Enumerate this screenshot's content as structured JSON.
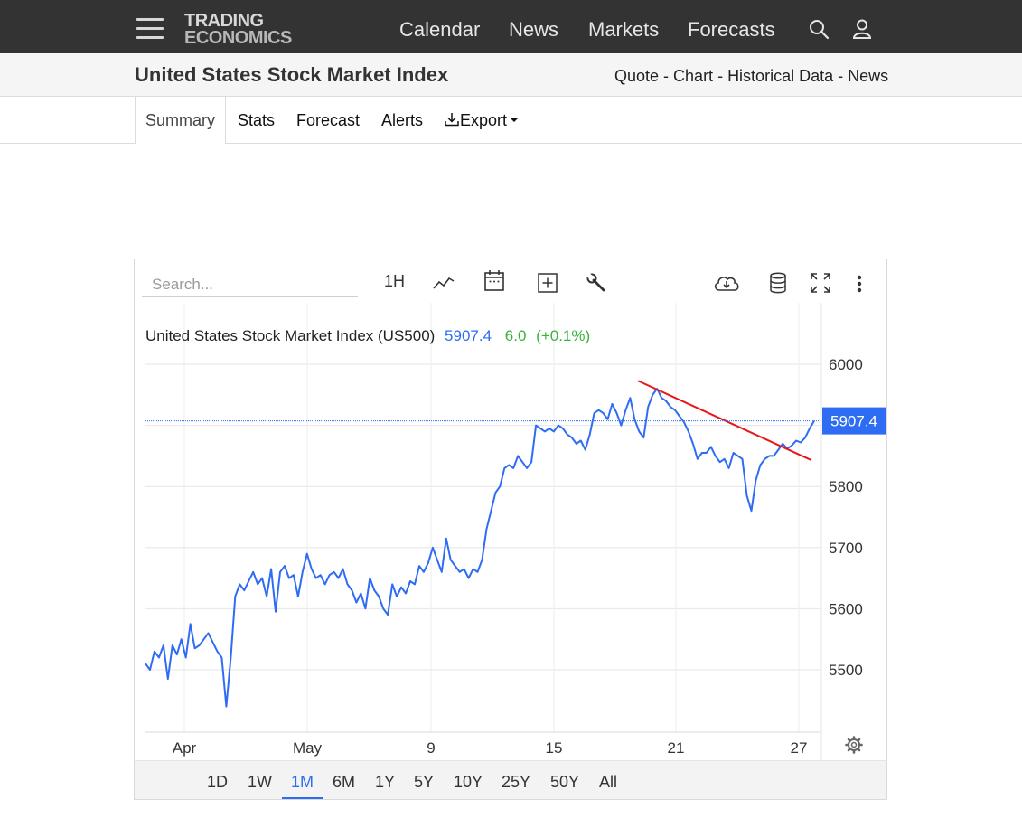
{
  "nav": {
    "logo_line1": "TRADING",
    "logo_line2": "ECONOMICS",
    "links": [
      "Calendar",
      "News",
      "Markets",
      "Forecasts"
    ]
  },
  "header": {
    "title": "United States Stock Market Index",
    "crumbs": [
      "Quote",
      "Chart",
      "Historical Data",
      "News"
    ]
  },
  "tabs": {
    "summary": "Summary",
    "stats": "Stats",
    "forecast": "Forecast",
    "alerts": "Alerts",
    "export": "Export"
  },
  "toolbar": {
    "search_placeholder": "Search...",
    "interval": "1H"
  },
  "ranges": [
    "1D",
    "1W",
    "1M",
    "6M",
    "1Y",
    "5Y",
    "10Y",
    "25Y",
    "50Y",
    "All"
  ],
  "active_range": "1M",
  "colors": {
    "series": "#2f6cf4",
    "trendline": "#e8171b",
    "positive": "#3bb33b",
    "price_label_bg": "#2f6cf4"
  },
  "chart_data": {
    "type": "line",
    "title": "United States Stock Market Index (US500)",
    "last_value": "5907.4",
    "change": "6.0",
    "change_pct": "(+0.1%)",
    "price_label": "5907.4",
    "x_ticks": [
      "Apr",
      "May",
      "9",
      "15",
      "21",
      "27"
    ],
    "y_ticks": [
      6000,
      5800,
      5700,
      5600,
      5500
    ],
    "ylim": [
      5400,
      6100
    ],
    "grid": true,
    "series": [
      {
        "values": [
          5510,
          5500,
          5530,
          5520,
          5540,
          5485,
          5540,
          5525,
          5550,
          5520,
          5575,
          5535,
          5540,
          5550,
          5560,
          5545,
          5530,
          5520,
          5440,
          5520,
          5620,
          5640,
          5630,
          5645,
          5660,
          5640,
          5650,
          5620,
          5665,
          5595,
          5660,
          5670,
          5650,
          5655,
          5620,
          5660,
          5690,
          5665,
          5650,
          5655,
          5640,
          5655,
          5660,
          5650,
          5665,
          5640,
          5630,
          5610,
          5625,
          5600,
          5650,
          5630,
          5620,
          5600,
          5590,
          5640,
          5620,
          5635,
          5625,
          5645,
          5640,
          5670,
          5660,
          5675,
          5700,
          5680,
          5660,
          5715,
          5680,
          5670,
          5660,
          5665,
          5650,
          5665,
          5660,
          5680,
          5730,
          5760,
          5790,
          5800,
          5830,
          5835,
          5830,
          5850,
          5840,
          5830,
          5840,
          5900,
          5895,
          5890,
          5895,
          5890,
          5900,
          5895,
          5885,
          5880,
          5870,
          5875,
          5860,
          5885,
          5920,
          5925,
          5920,
          5910,
          5935,
          5920,
          5900,
          5925,
          5945,
          5910,
          5890,
          5880,
          5930,
          5950,
          5960,
          5945,
          5940,
          5930,
          5925,
          5915,
          5905,
          5890,
          5870,
          5845,
          5855,
          5855,
          5865,
          5850,
          5840,
          5845,
          5830,
          5855,
          5850,
          5845,
          5785,
          5760,
          5810,
          5835,
          5845,
          5850,
          5850,
          5860,
          5870,
          5862,
          5867,
          5875,
          5872,
          5880,
          5895,
          5907.4
        ]
      }
    ],
    "annotations": [
      {
        "type": "trendline",
        "from": 5973,
        "to": 5843
      }
    ]
  }
}
